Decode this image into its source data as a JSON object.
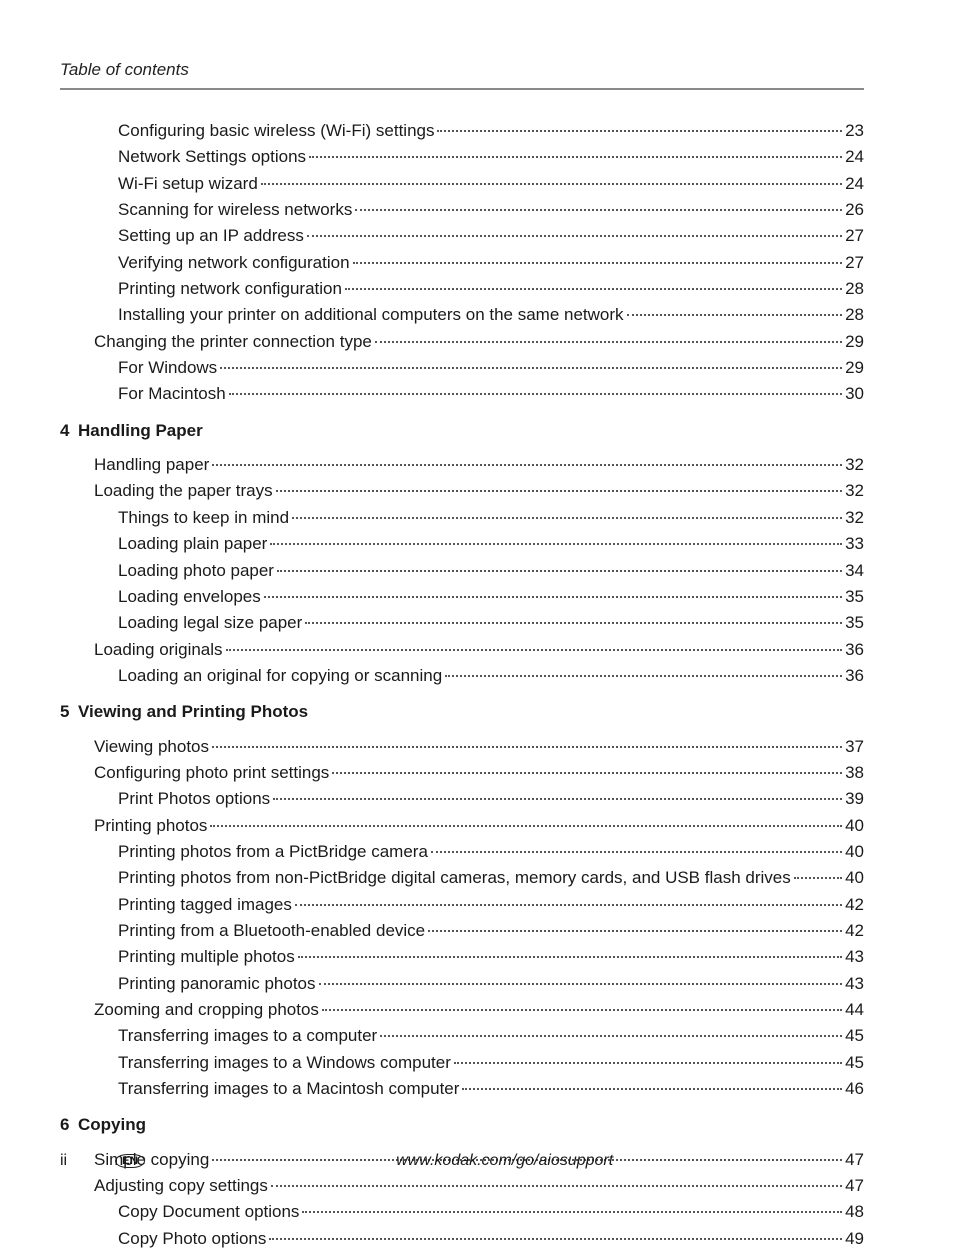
{
  "running_head": "Table of contents",
  "sections": [
    {
      "entries": [
        {
          "level": 2,
          "label": "Configuring basic wireless (Wi-Fi) settings",
          "page": "23"
        },
        {
          "level": 2,
          "label": "Network Settings options",
          "page": "24"
        },
        {
          "level": 2,
          "label": "Wi-Fi setup wizard",
          "page": "24"
        },
        {
          "level": 2,
          "label": "Scanning for wireless networks",
          "page": "26"
        },
        {
          "level": 2,
          "label": "Setting up an IP address",
          "page": "27"
        },
        {
          "level": 2,
          "label": "Verifying network configuration",
          "page": "27"
        },
        {
          "level": 2,
          "label": "Printing network configuration",
          "page": "28"
        },
        {
          "level": 2,
          "label": "Installing your printer on additional computers on the same network",
          "page": "28"
        },
        {
          "level": 1,
          "label": "Changing the printer connection type",
          "page": "29"
        },
        {
          "level": 2,
          "label": "For Windows",
          "page": "29"
        },
        {
          "level": 2,
          "label": "For Macintosh",
          "page": "30"
        }
      ]
    },
    {
      "number": "4",
      "title": "Handling Paper",
      "entries": [
        {
          "level": 1,
          "label": "Handling paper",
          "page": "32"
        },
        {
          "level": 1,
          "label": "Loading the paper trays",
          "page": "32"
        },
        {
          "level": 2,
          "label": "Things to keep in mind",
          "page": "32"
        },
        {
          "level": 2,
          "label": "Loading plain paper",
          "page": "33"
        },
        {
          "level": 2,
          "label": "Loading photo paper",
          "page": "34"
        },
        {
          "level": 2,
          "label": "Loading envelopes",
          "page": "35"
        },
        {
          "level": 2,
          "label": "Loading legal size paper",
          "page": "35"
        },
        {
          "level": 1,
          "label": "Loading originals",
          "page": "36"
        },
        {
          "level": 2,
          "label": "Loading an original for copying or scanning",
          "page": "36"
        }
      ]
    },
    {
      "number": "5",
      "title": "Viewing and Printing Photos",
      "entries": [
        {
          "level": 1,
          "label": "Viewing photos",
          "page": "37"
        },
        {
          "level": 1,
          "label": "Configuring photo print settings",
          "page": "38"
        },
        {
          "level": 2,
          "label": "Print Photos options",
          "page": "39"
        },
        {
          "level": 1,
          "label": "Printing photos",
          "page": "40"
        },
        {
          "level": 2,
          "label": "Printing photos from a PictBridge camera",
          "page": "40"
        },
        {
          "level": 2,
          "label": "Printing photos from non-PictBridge digital cameras, memory cards, and USB flash drives",
          "page": "40"
        },
        {
          "level": 2,
          "label": "Printing tagged images",
          "page": "42"
        },
        {
          "level": 2,
          "label": "Printing from a Bluetooth-enabled device",
          "page": "42"
        },
        {
          "level": 2,
          "label": "Printing multiple photos",
          "page": "43"
        },
        {
          "level": 2,
          "label": "Printing panoramic photos",
          "page": "43"
        },
        {
          "level": 1,
          "label": "Zooming and cropping photos",
          "page": "44"
        },
        {
          "level": 2,
          "label": "Transferring images to a computer",
          "page": "45"
        },
        {
          "level": 2,
          "label": "Transferring images to a Windows computer",
          "page": "45"
        },
        {
          "level": 2,
          "label": "Transferring images to a Macintosh computer",
          "page": "46"
        }
      ]
    },
    {
      "number": "6",
      "title": "Copying",
      "entries": [
        {
          "level": 1,
          "label": "Simple copying",
          "page": "47"
        },
        {
          "level": 1,
          "label": "Adjusting copy settings",
          "page": "47"
        },
        {
          "level": 2,
          "label": "Copy Document options",
          "page": "48"
        },
        {
          "level": 2,
          "label": "Copy Photo options",
          "page": "49"
        }
      ]
    }
  ],
  "footer": {
    "folio": "ii",
    "lang": "EN",
    "url": "www.kodak.com/go/aiosupport"
  }
}
